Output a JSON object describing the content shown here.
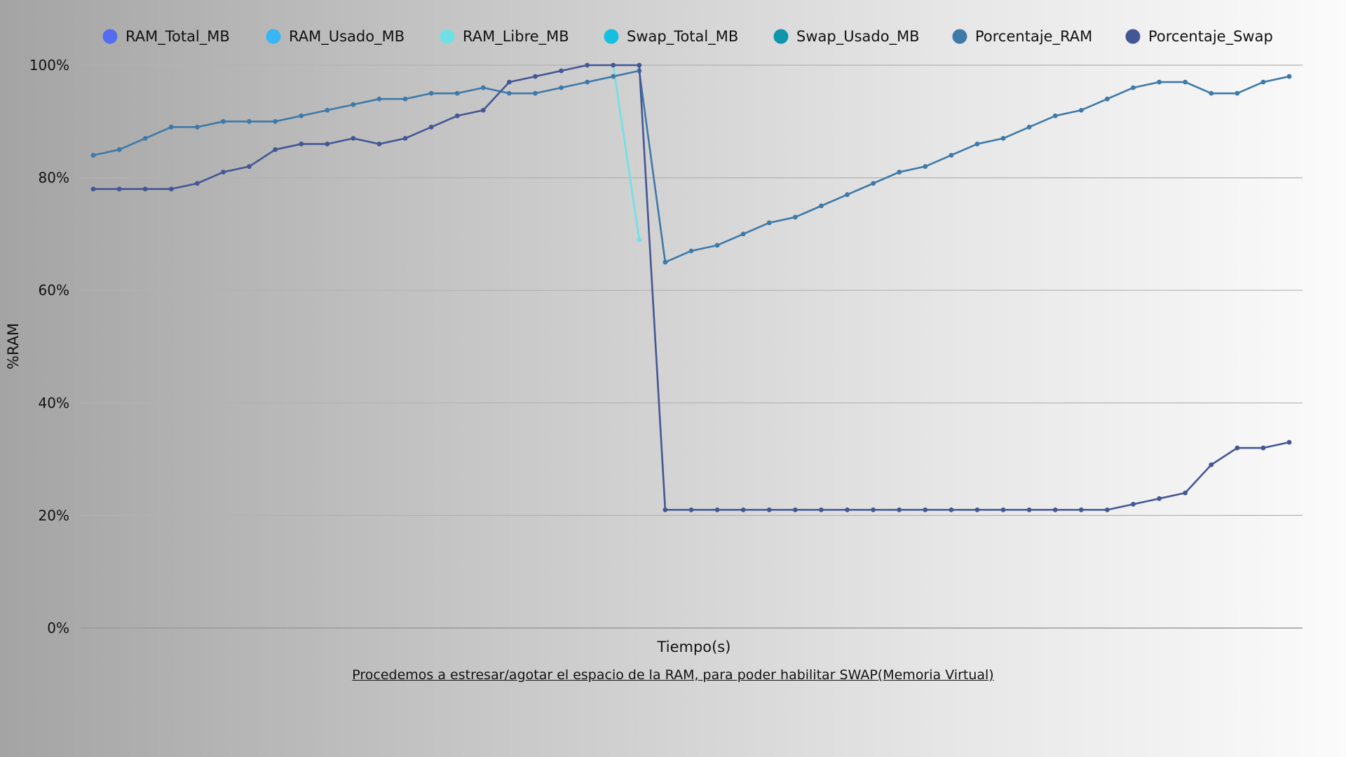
{
  "caption": "Procedemos a estresar/agotar el espacio de la RAM, para poder habilitar SWAP(Memoria Virtual)",
  "chart_data": {
    "type": "line",
    "title": "",
    "xlabel": "Tiempo(s)",
    "ylabel": "%RAM",
    "ylim": [
      0,
      100
    ],
    "yticks": [
      "0%",
      "20%",
      "40%",
      "60%",
      "80%",
      "100%"
    ],
    "grid": true,
    "legend_position": "top",
    "x_count": 47,
    "series": [
      {
        "name": "RAM_Total_MB",
        "color": "#556bf0",
        "values": []
      },
      {
        "name": "RAM_Usado_MB",
        "color": "#38b6f5",
        "values": []
      },
      {
        "name": "RAM_Libre_MB",
        "color": "#6fe1e6",
        "values": [
          null,
          null,
          null,
          null,
          null,
          null,
          null,
          null,
          null,
          null,
          null,
          null,
          null,
          null,
          null,
          null,
          null,
          null,
          null,
          null,
          100,
          69
        ]
      },
      {
        "name": "Swap_Total_MB",
        "color": "#14bfe0",
        "values": []
      },
      {
        "name": "Swap_Usado_MB",
        "color": "#0f95ad",
        "values": []
      },
      {
        "name": "Porcentaje_RAM",
        "color": "#3e79a8",
        "values": [
          84,
          85,
          87,
          89,
          89,
          90,
          90,
          90,
          91,
          92,
          93,
          94,
          94,
          95,
          95,
          96,
          95,
          95,
          96,
          97,
          98,
          99,
          65,
          67,
          68,
          70,
          72,
          73,
          75,
          77,
          79,
          81,
          82,
          84,
          86,
          87,
          89,
          91,
          92,
          94,
          96,
          97,
          97,
          95,
          95,
          97,
          98
        ]
      },
      {
        "name": "Porcentaje_Swap",
        "color": "#435795",
        "values": [
          78,
          78,
          78,
          78,
          79,
          81,
          82,
          85,
          86,
          86,
          87,
          86,
          87,
          89,
          91,
          92,
          97,
          98,
          99,
          100,
          100,
          100,
          21,
          21,
          21,
          21,
          21,
          21,
          21,
          21,
          21,
          21,
          21,
          21,
          21,
          21,
          21,
          21,
          21,
          21,
          22,
          23,
          24,
          29,
          32,
          32,
          33
        ]
      }
    ]
  }
}
